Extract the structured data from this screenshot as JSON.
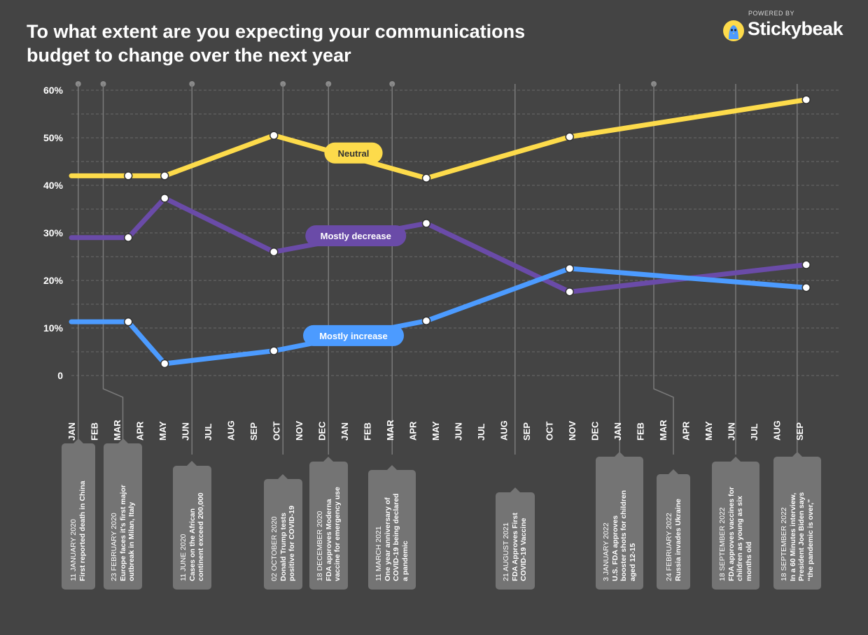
{
  "header": {
    "title_line1": "To what extent are you expecting your communications",
    "title_line2": "budget to change over the next year"
  },
  "branding": {
    "powered_by": "POWERED BY",
    "name": "Stickybeak",
    "mascot_icon": "bird-mascot-icon"
  },
  "colors": {
    "background": "#444444",
    "neutral": "#FDDB4B",
    "mostly_decrease": "#6A4BA8",
    "mostly_increase": "#4C9BFF",
    "event_box": "#747474",
    "grid": "#6a6a6a"
  },
  "chart_data": {
    "type": "line",
    "title": "To what extent are you expecting your communications budget to change over the next year",
    "xlabel": "",
    "ylabel": "",
    "ylim": [
      0,
      60
    ],
    "y_ticks": [
      {
        "value": 60,
        "label": "60%"
      },
      {
        "value": 50,
        "label": "50%"
      },
      {
        "value": 40,
        "label": "40%"
      },
      {
        "value": 30,
        "label": "30%"
      },
      {
        "value": 20,
        "label": "20%"
      },
      {
        "value": 10,
        "label": "10%"
      },
      {
        "value": 0,
        "label": "0"
      }
    ],
    "categories": [
      "JAN",
      "FEB",
      "MAR",
      "APR",
      "MAY",
      "JUN",
      "JUL",
      "AUG",
      "SEP",
      "OCT",
      "NOV",
      "DEC",
      "JAN",
      "FEB",
      "MAR",
      "APR",
      "MAY",
      "JUN",
      "JUL",
      "AUG",
      "SEP",
      "OCT",
      "NOV",
      "DEC",
      "JAN",
      "FEB",
      "MAR",
      "APR",
      "MAY",
      "JUN",
      "JUL",
      "AUG",
      "SEP"
    ],
    "series": [
      {
        "name": "Neutral",
        "color": "#FDDB4B",
        "points": [
          {
            "x": 0,
            "y": 42.0
          },
          {
            "x": 2.5,
            "y": 42.0
          },
          {
            "x": 4.1,
            "y": 42.0
          },
          {
            "x": 8.9,
            "y": 50.5
          },
          {
            "x": 15.6,
            "y": 41.5
          },
          {
            "x": 21.9,
            "y": 50.2
          },
          {
            "x": 32.3,
            "y": 58.0
          }
        ]
      },
      {
        "name": "Mostly decrease",
        "color": "#6A4BA8",
        "points": [
          {
            "x": 0,
            "y": 29.0
          },
          {
            "x": 2.5,
            "y": 29.0
          },
          {
            "x": 4.1,
            "y": 37.3
          },
          {
            "x": 8.9,
            "y": 26.0
          },
          {
            "x": 15.6,
            "y": 32.0
          },
          {
            "x": 21.9,
            "y": 17.6
          },
          {
            "x": 32.3,
            "y": 23.3
          }
        ]
      },
      {
        "name": "Mostly increase",
        "color": "#4C9BFF",
        "points": [
          {
            "x": 0,
            "y": 11.3
          },
          {
            "x": 2.5,
            "y": 11.3
          },
          {
            "x": 4.1,
            "y": 2.5
          },
          {
            "x": 8.9,
            "y": 5.2
          },
          {
            "x": 15.6,
            "y": 11.5
          },
          {
            "x": 21.9,
            "y": 22.5
          },
          {
            "x": 32.3,
            "y": 18.5
          }
        ]
      }
    ],
    "series_labels": [
      {
        "text": "Neutral",
        "series": 0,
        "x": 12.4,
        "y": 46.8
      },
      {
        "text": "Mostly decrease",
        "series": 1,
        "x": 12.5,
        "y": 29.4
      },
      {
        "text": "Mostly increase",
        "series": 2,
        "x": 12.4,
        "y": 8.4
      }
    ]
  },
  "events": [
    {
      "date": "11 JANUARY 2020",
      "description": [
        "First reported death in China"
      ],
      "x": 0.3,
      "to_axis": false
    },
    {
      "date": "23 FEBRUARY 2020",
      "description": [
        "Europe faces it's first major",
        "outbreak in Milan, Italy"
      ],
      "x": 1.4,
      "to_axis": true
    },
    {
      "date": "11 JUNE 2020",
      "description": [
        "Cases on the African",
        "continent exceed 200,000"
      ],
      "x": 5.3,
      "to_axis": false
    },
    {
      "date": "02 OCTOBER 2020",
      "description": [
        "Donald Trump tests",
        "positive for COVID-19"
      ],
      "x": 9.3,
      "to_axis": false
    },
    {
      "date": "18 DECEMBER 2020",
      "description": [
        "FDA approves Moderna",
        "vaccine for emergency use"
      ],
      "x": 11.3,
      "to_axis": false
    },
    {
      "date": "11 MARCH 2021",
      "description": [
        "One year anniversary of",
        "COVID-19 being declared",
        "a pandemic"
      ],
      "x": 14.1,
      "to_axis": false
    },
    {
      "date": "21 AUGUST 2021",
      "description": [
        "FDA Approves First",
        "COVID-19 Vaccine"
      ],
      "x": 19.5,
      "to_axis": false
    },
    {
      "date": "3 JANUARY 2022",
      "description": [
        "U.S. FDA approves",
        "booster shots for children",
        "aged 12-15"
      ],
      "x": 24.1,
      "to_axis": false
    },
    {
      "date": "24 FEBRUARY 2022",
      "description": [
        "Russia invades Ukraine"
      ],
      "x": 25.6,
      "to_axis": true
    },
    {
      "date": "18 SEPTEMBER 2022",
      "description": [
        "FDA approves vaccines for",
        "children as young as six",
        "months old"
      ],
      "x": 29.2,
      "to_axis": false
    },
    {
      "date": "18 SEPTEMBER 2022",
      "description": [
        "In a 60 Minutes interview,",
        "President Joe Biden says",
        "“the pandemic is over,”"
      ],
      "x": 31.9,
      "to_axis": false
    }
  ]
}
